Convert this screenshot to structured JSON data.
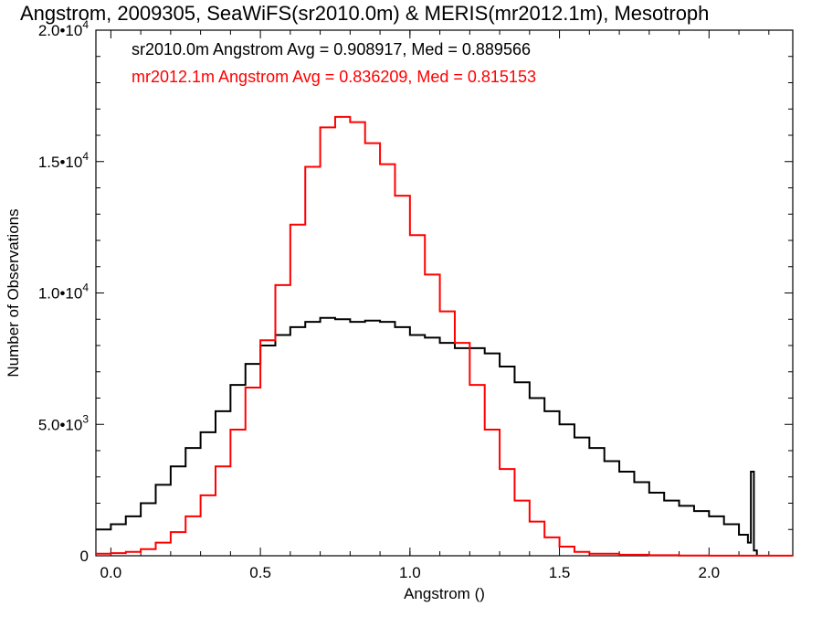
{
  "chart_data": {
    "type": "histogram",
    "title": "Angstrom, 2009305, SeaWiFS(sr2010.0m) & MERIS(mr2012.1m), Mesotroph",
    "xlabel": "Angstrom ()",
    "ylabel": "Number of Observations",
    "xlim": [
      -0.05,
      2.28
    ],
    "ylim": [
      0,
      20000
    ],
    "xticks": [
      {
        "value": 0.0,
        "label": "0.0"
      },
      {
        "value": 0.5,
        "label": "0.5"
      },
      {
        "value": 1.0,
        "label": "1.0"
      },
      {
        "value": 1.5,
        "label": "1.5"
      },
      {
        "value": 2.0,
        "label": "2.0"
      }
    ],
    "yticks": [
      {
        "value": 0,
        "mant": "0",
        "exp": ""
      },
      {
        "value": 5000,
        "mant": "5.0•10",
        "exp": "3"
      },
      {
        "value": 10000,
        "mant": "1.0•10",
        "exp": "4"
      },
      {
        "value": 15000,
        "mant": "1.5•10",
        "exp": "4"
      },
      {
        "value": 20000,
        "mant": "2.0•10",
        "exp": "4"
      }
    ],
    "grid": false,
    "legend": [
      {
        "text": "sr2010.0m Angstrom Avg = 0.908917, Med = 0.889566",
        "color": "#000000"
      },
      {
        "text": "mr2012.1m Angstrom Avg = 0.836209, Med = 0.815153",
        "color": "#ff0000"
      }
    ],
    "series": [
      {
        "name": "sr2010.0m",
        "color": "#000000",
        "points": [
          [
            -0.05,
            1000
          ],
          [
            0.0,
            1200
          ],
          [
            0.05,
            1500
          ],
          [
            0.1,
            2000
          ],
          [
            0.15,
            2700
          ],
          [
            0.2,
            3400
          ],
          [
            0.25,
            4100
          ],
          [
            0.3,
            4700
          ],
          [
            0.35,
            5500
          ],
          [
            0.4,
            6500
          ],
          [
            0.45,
            7300
          ],
          [
            0.5,
            8000
          ],
          [
            0.55,
            8400
          ],
          [
            0.6,
            8700
          ],
          [
            0.65,
            8900
          ],
          [
            0.7,
            9050
          ],
          [
            0.75,
            9000
          ],
          [
            0.8,
            8900
          ],
          [
            0.85,
            8950
          ],
          [
            0.9,
            8900
          ],
          [
            0.95,
            8700
          ],
          [
            1.0,
            8400
          ],
          [
            1.05,
            8300
          ],
          [
            1.1,
            8100
          ],
          [
            1.15,
            7900
          ],
          [
            1.2,
            7900
          ],
          [
            1.25,
            7700
          ],
          [
            1.3,
            7200
          ],
          [
            1.35,
            6600
          ],
          [
            1.4,
            6000
          ],
          [
            1.45,
            5500
          ],
          [
            1.5,
            5000
          ],
          [
            1.55,
            4500
          ],
          [
            1.6,
            4100
          ],
          [
            1.65,
            3600
          ],
          [
            1.7,
            3200
          ],
          [
            1.75,
            2800
          ],
          [
            1.8,
            2400
          ],
          [
            1.85,
            2100
          ],
          [
            1.9,
            1900
          ],
          [
            1.95,
            1700
          ],
          [
            2.0,
            1500
          ],
          [
            2.05,
            1200
          ],
          [
            2.1,
            800
          ],
          [
            2.13,
            500
          ],
          [
            2.14,
            3200
          ],
          [
            2.15,
            200
          ],
          [
            2.16,
            0
          ]
        ]
      },
      {
        "name": "mr2012.1m",
        "color": "#ff0000",
        "points": [
          [
            -0.05,
            80
          ],
          [
            0.0,
            100
          ],
          [
            0.05,
            150
          ],
          [
            0.1,
            250
          ],
          [
            0.15,
            500
          ],
          [
            0.2,
            900
          ],
          [
            0.25,
            1500
          ],
          [
            0.3,
            2300
          ],
          [
            0.35,
            3400
          ],
          [
            0.4,
            4800
          ],
          [
            0.45,
            6400
          ],
          [
            0.5,
            8200
          ],
          [
            0.55,
            10300
          ],
          [
            0.6,
            12600
          ],
          [
            0.65,
            14800
          ],
          [
            0.7,
            16300
          ],
          [
            0.75,
            16700
          ],
          [
            0.8,
            16500
          ],
          [
            0.85,
            15700
          ],
          [
            0.9,
            14900
          ],
          [
            0.95,
            13700
          ],
          [
            1.0,
            12200
          ],
          [
            1.05,
            10700
          ],
          [
            1.1,
            9300
          ],
          [
            1.15,
            8100
          ],
          [
            1.2,
            6500
          ],
          [
            1.25,
            4800
          ],
          [
            1.3,
            3300
          ],
          [
            1.35,
            2100
          ],
          [
            1.4,
            1300
          ],
          [
            1.45,
            700
          ],
          [
            1.5,
            350
          ],
          [
            1.55,
            150
          ],
          [
            1.6,
            80
          ],
          [
            1.7,
            40
          ],
          [
            1.8,
            20
          ],
          [
            1.9,
            10
          ],
          [
            2.0,
            5
          ],
          [
            2.28,
            0
          ]
        ]
      }
    ]
  }
}
